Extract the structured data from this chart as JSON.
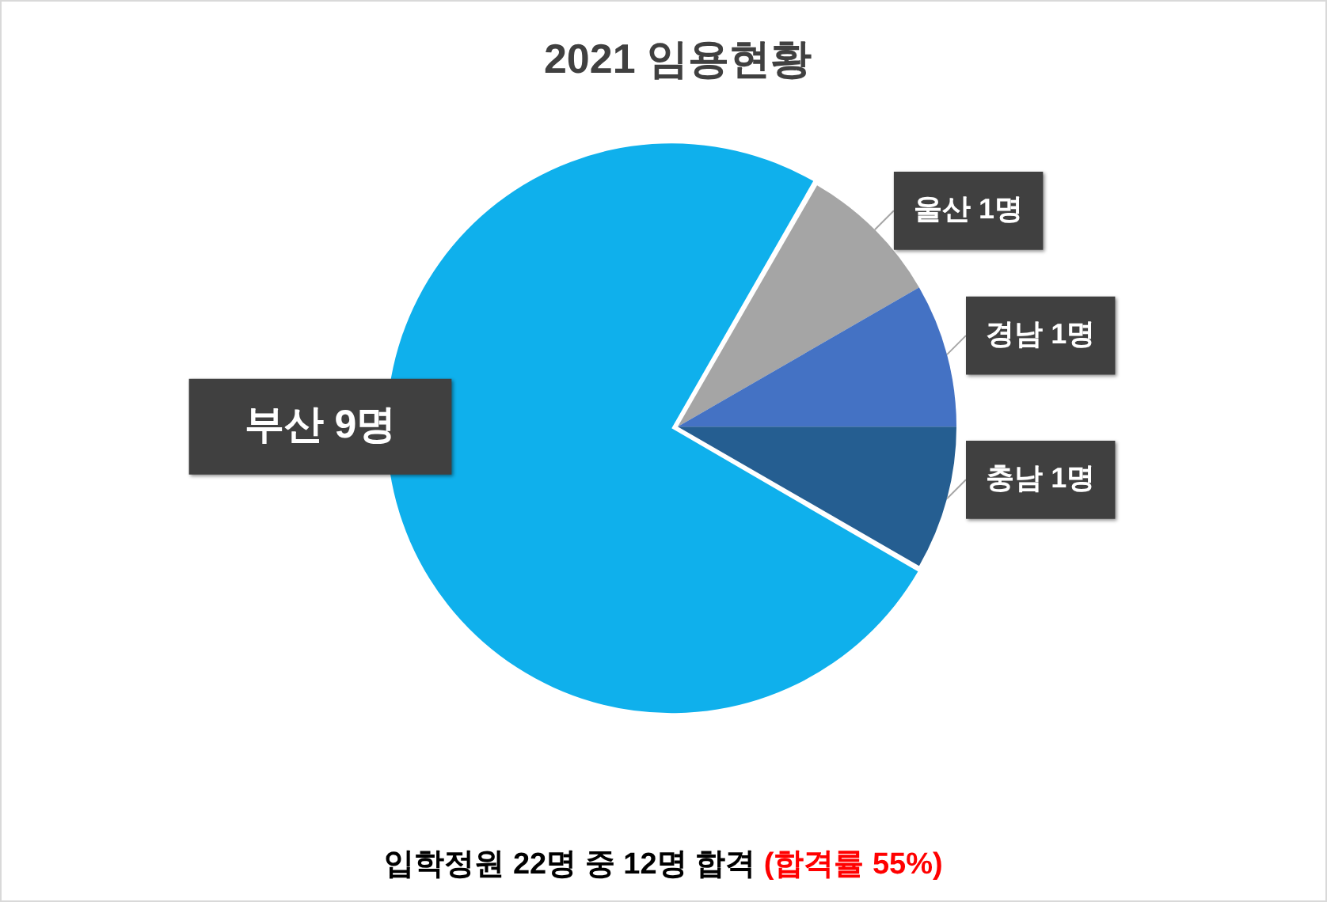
{
  "chart_data": {
    "type": "pie",
    "title": "2021 임용현황",
    "categories": [
      "부산",
      "울산",
      "경남",
      "충남"
    ],
    "values": [
      9,
      1,
      1,
      1
    ],
    "colors": [
      "#0fb0ec",
      "#a5a5a5",
      "#4472c4",
      "#255e91"
    ],
    "value_labels": [
      "9명",
      "1명",
      "1명",
      "1명"
    ],
    "annotations": [
      "입학정원 22명 중 12명 합격",
      "(합격률 55%)"
    ]
  }
}
